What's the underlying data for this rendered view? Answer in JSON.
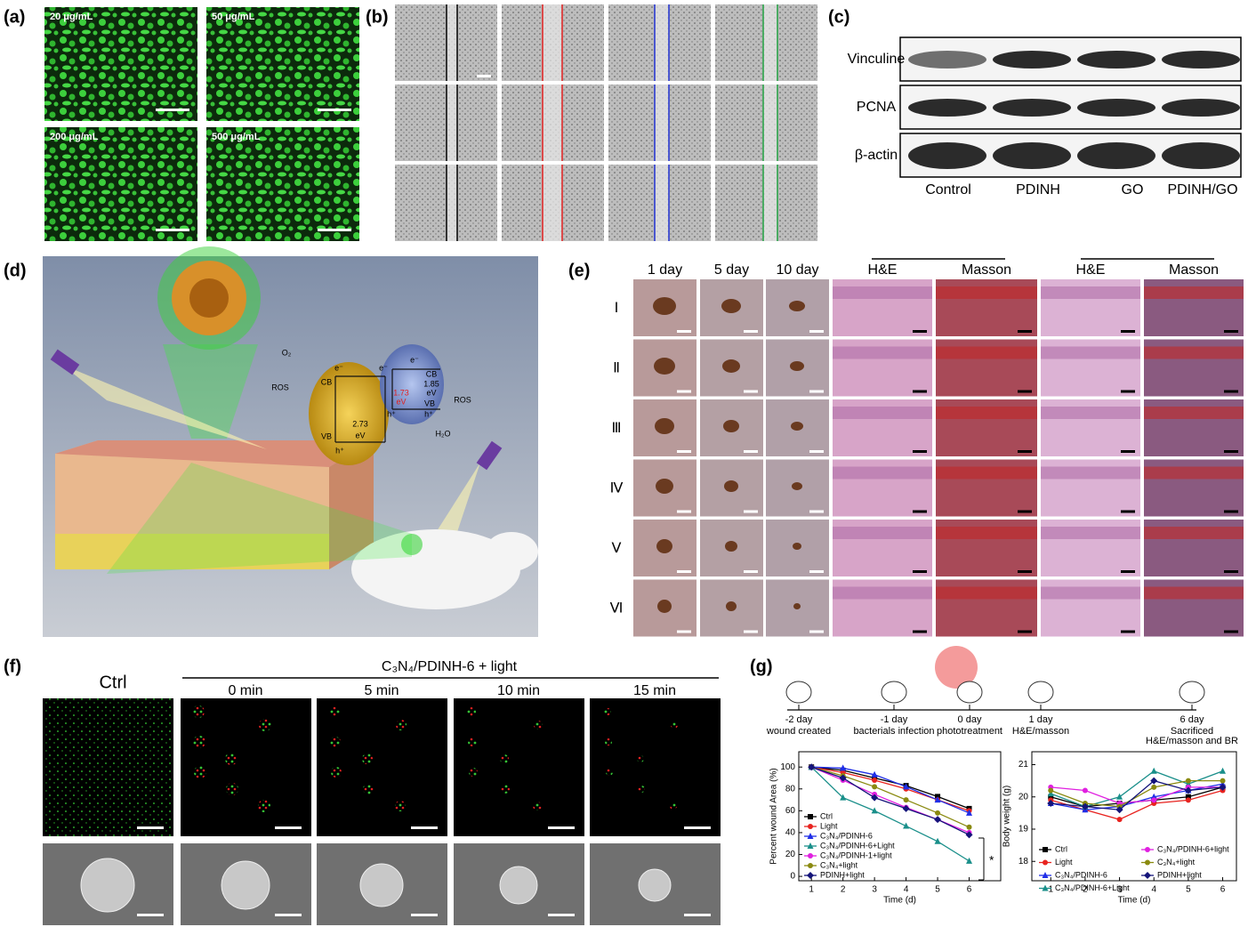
{
  "panels": {
    "a": {
      "label": "(a)",
      "images": [
        "20 μg/mL",
        "50 μg/mL",
        "200 μg/mL",
        "500 μg/mL"
      ]
    },
    "b": {
      "label": "(b)"
    },
    "c": {
      "label": "(c)",
      "proteins": [
        "Vinculine",
        "PCNA",
        "β-actin"
      ],
      "groups": [
        "Control",
        "PDINH",
        "GO",
        "PDINH/GO"
      ]
    },
    "d": {
      "label": "(d)",
      "scheme": [
        "O₂",
        "e⁻",
        "CB",
        "ROS",
        "VB",
        "h⁺",
        "2.73",
        "eV",
        "e⁻",
        "1.73",
        "eV",
        "h⁺",
        "e⁻",
        "CB",
        "1.85",
        "eV",
        "VB",
        "h⁺",
        "ROS",
        "H₂O"
      ]
    },
    "e": {
      "label": "(e)",
      "columns": [
        "1 day",
        "5 day",
        "10 day",
        "H&E",
        "Masson",
        "H&E",
        "Masson"
      ],
      "rows": [
        "Ⅰ",
        "Ⅱ",
        "Ⅲ",
        "Ⅳ",
        "Ⅴ",
        "Ⅵ"
      ]
    },
    "f": {
      "label": "(f)",
      "control": "Ctrl",
      "treatment": "C₃N₄/PDINH-6 + light",
      "times": [
        "0 min",
        "5 min",
        "10 min",
        "15 min"
      ]
    },
    "g": {
      "label": "(g)",
      "timeline": [
        {
          "day": "-2 day",
          "events": [
            "wound created"
          ]
        },
        {
          "day": "-1 day",
          "events": [
            "bacterials infection"
          ]
        },
        {
          "day": "0 day",
          "events": [
            "phototreatment"
          ]
        },
        {
          "day": "1 day",
          "events": [
            "H&E/masson"
          ]
        },
        {
          "day": "6 day",
          "events": [
            "Sacrificed",
            "H&E/masson and BR"
          ]
        }
      ]
    }
  },
  "chart_data": [
    {
      "type": "line",
      "xlabel": "Time (d)",
      "ylabel": "Percent wound Area (%)",
      "x": [
        1,
        2,
        3,
        4,
        5,
        6
      ],
      "xlim": [
        0.6,
        7.0
      ],
      "xticks": [
        1,
        2,
        3,
        4,
        5,
        6
      ],
      "ylim": [
        -4,
        114
      ],
      "yticks": [
        0,
        20,
        40,
        60,
        80,
        100
      ],
      "legend": "lower left",
      "annotation": "*",
      "series": [
        {
          "name": "Ctrl",
          "color": "#000000",
          "values": [
            100,
            97,
            90,
            83,
            73,
            62
          ]
        },
        {
          "name": "Light",
          "color": "#e8231f",
          "values": [
            100,
            95,
            88,
            80,
            70,
            60
          ]
        },
        {
          "name": "C₃N₄/PDINH-6",
          "color": "#1f2ee8",
          "values": [
            100,
            99,
            93,
            82,
            70,
            58
          ]
        },
        {
          "name": "C₃N₄/PDINH-6+Light",
          "color": "#1a8f8a",
          "values": [
            100,
            72,
            60,
            46,
            32,
            14
          ]
        },
        {
          "name": "C₃N₄/PDINH-1+light",
          "color": "#e020e0",
          "values": [
            100,
            88,
            75,
            63,
            52,
            40
          ]
        },
        {
          "name": "C₃N₄+light",
          "color": "#8a8a10",
          "values": [
            100,
            92,
            82,
            70,
            58,
            45
          ]
        },
        {
          "name": "PDINH+light",
          "color": "#14147a",
          "values": [
            100,
            90,
            72,
            62,
            52,
            38
          ]
        }
      ]
    },
    {
      "type": "line",
      "xlabel": "Time (d)",
      "ylabel": "Body weight (g)",
      "x": [
        1,
        2,
        3,
        4,
        5,
        6
      ],
      "xlim": [
        0.45,
        6.4
      ],
      "xticks": [
        1,
        2,
        3,
        4,
        5,
        6
      ],
      "ylim": [
        17.4,
        21.4
      ],
      "yticks": [
        18,
        19,
        20,
        21
      ],
      "legend": "lower left",
      "series": [
        {
          "name": "Ctrl",
          "color": "#000000",
          "values": [
            20.0,
            19.7,
            19.8,
            19.9,
            20.0,
            20.3
          ]
        },
        {
          "name": "Light",
          "color": "#e8231f",
          "values": [
            19.9,
            19.6,
            19.3,
            19.8,
            19.9,
            20.2
          ]
        },
        {
          "name": "C₃N₄/PDINH-6",
          "color": "#1f2ee8",
          "values": [
            19.8,
            19.6,
            19.7,
            20.0,
            20.2,
            20.4
          ]
        },
        {
          "name": "C₃N₄/PDINH-6+Light",
          "color": "#1a8f8a",
          "values": [
            20.1,
            19.7,
            20.0,
            20.8,
            20.4,
            20.8
          ]
        },
        {
          "name": "C₃N₄/PDINH-6+light",
          "color": "#e020e0",
          "values": [
            20.3,
            20.2,
            19.8,
            19.9,
            20.3,
            20.3
          ]
        },
        {
          "name": "C₃N₄+light",
          "color": "#8a8a10",
          "values": [
            20.2,
            19.8,
            19.7,
            20.3,
            20.5,
            20.5
          ]
        },
        {
          "name": "PDINH+light",
          "color": "#14147a",
          "values": [
            19.8,
            19.7,
            19.6,
            20.5,
            20.2,
            20.3
          ]
        }
      ]
    }
  ]
}
